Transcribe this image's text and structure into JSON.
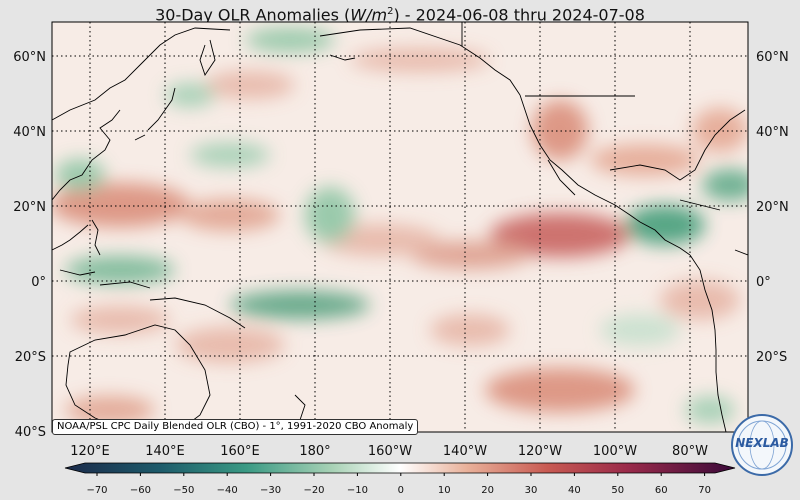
{
  "title": {
    "prefix": "30-Day OLR Anomalies (",
    "unit_base": "W/m",
    "unit_exp": "2",
    "suffix": ") - 2024-06-08 thru 2024-07-08"
  },
  "map": {
    "lon_labels": [
      "120°E",
      "140°E",
      "160°E",
      "180°",
      "160°W",
      "140°W",
      "120°W",
      "100°W",
      "80°W"
    ],
    "lat_labels": [
      "60°N",
      "40°N",
      "20°N",
      "0°",
      "20°S",
      "40°S"
    ],
    "lat_range": [
      -40,
      68
    ],
    "lon_range_note": "110°E to 285°E"
  },
  "colorbar": {
    "ticks": [
      "−70",
      "−60",
      "−50",
      "−40",
      "−30",
      "−20",
      "−10",
      "0",
      "10",
      "20",
      "30",
      "40",
      "50",
      "60",
      "70"
    ],
    "range": [
      -75,
      75
    ],
    "negative_color": "#1f7a5a",
    "positive_color": "#a33a3a",
    "neutral_color": "#ffffff"
  },
  "caption": "NOAA/PSL CPC Daily Blended OLR (CBO) - 1°, 1991-2020 CBO Anomaly",
  "logo": {
    "text": "NEXLAB",
    "icon": "globe-logo-icon"
  }
}
